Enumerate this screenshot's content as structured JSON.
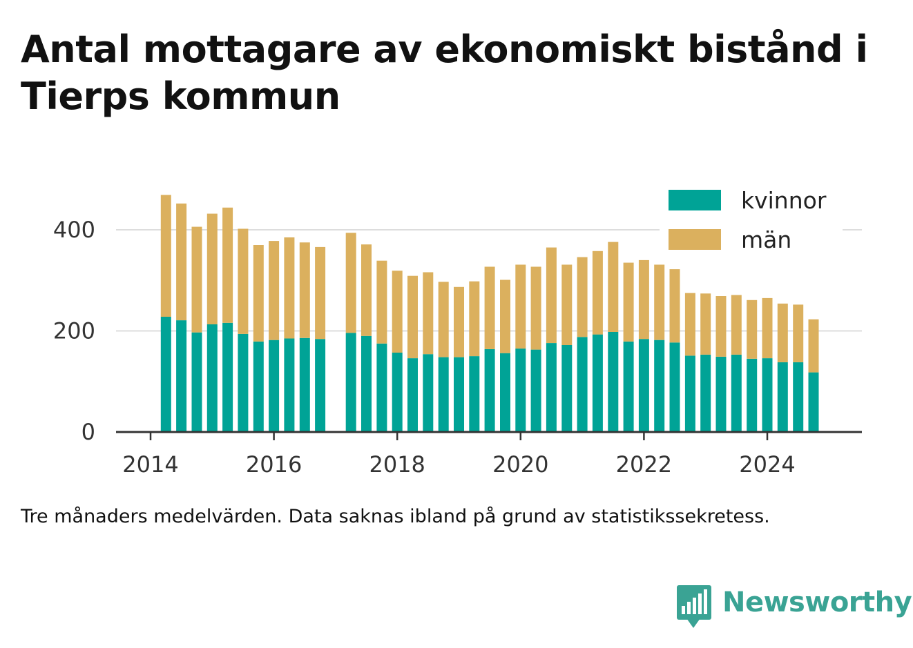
{
  "title": "Antal mottagare av ekonomiskt bistånd i Tierps kommun",
  "footnote": "Tre månaders medelvärden. Data saknas ibland på grund av statistikssekretess.",
  "brand": {
    "name": "Newsworthy",
    "logo_icon": "bar-chart-speech-bubble-icon",
    "color": "#3aa394"
  },
  "chart_data": {
    "type": "bar",
    "stacked": true,
    "title": "Antal mottagare av ekonomiskt bistånd i Tierps kommun",
    "xlabel": "",
    "ylabel": "",
    "x_ticks": [
      "2014",
      "2016",
      "2018",
      "2020",
      "2022",
      "2024"
    ],
    "y_ticks": [
      "0",
      "200",
      "400"
    ],
    "xlim": [
      2014,
      2025.5
    ],
    "ylim": [
      0,
      500
    ],
    "grid": true,
    "legend_position": "top-right",
    "x": [
      2014.25,
      2014.5,
      2014.75,
      2015.0,
      2015.25,
      2015.5,
      2015.75,
      2016.0,
      2016.25,
      2016.5,
      2016.75,
      2017.25,
      2017.5,
      2017.75,
      2018.0,
      2018.25,
      2018.5,
      2018.75,
      2019.0,
      2019.25,
      2019.5,
      2019.75,
      2020.0,
      2020.25,
      2020.5,
      2020.75,
      2021.0,
      2021.25,
      2021.5,
      2021.75,
      2022.0,
      2022.25,
      2022.5,
      2022.75,
      2023.0,
      2023.25,
      2023.5,
      2023.75,
      2024.0,
      2024.25,
      2024.5,
      2024.75
    ],
    "series": [
      {
        "name": "kvinnor",
        "color": "#00a396",
        "values": [
          228,
          221,
          197,
          213,
          216,
          194,
          179,
          182,
          185,
          186,
          184,
          196,
          190,
          175,
          157,
          146,
          154,
          148,
          148,
          150,
          164,
          156,
          165,
          163,
          176,
          172,
          188,
          193,
          198,
          179,
          184,
          182,
          177,
          151,
          153,
          149,
          153,
          145,
          146,
          138,
          138,
          118
        ]
      },
      {
        "name": "män",
        "color": "#dbb05e",
        "values": [
          241,
          231,
          209,
          219,
          228,
          208,
          191,
          196,
          200,
          189,
          182,
          198,
          181,
          164,
          162,
          163,
          162,
          149,
          139,
          148,
          163,
          145,
          166,
          164,
          189,
          159,
          158,
          165,
          178,
          156,
          156,
          149,
          145,
          124,
          121,
          120,
          118,
          116,
          119,
          116,
          114,
          105
        ]
      }
    ],
    "missing_data_periods": [
      "2017-Q1"
    ]
  }
}
